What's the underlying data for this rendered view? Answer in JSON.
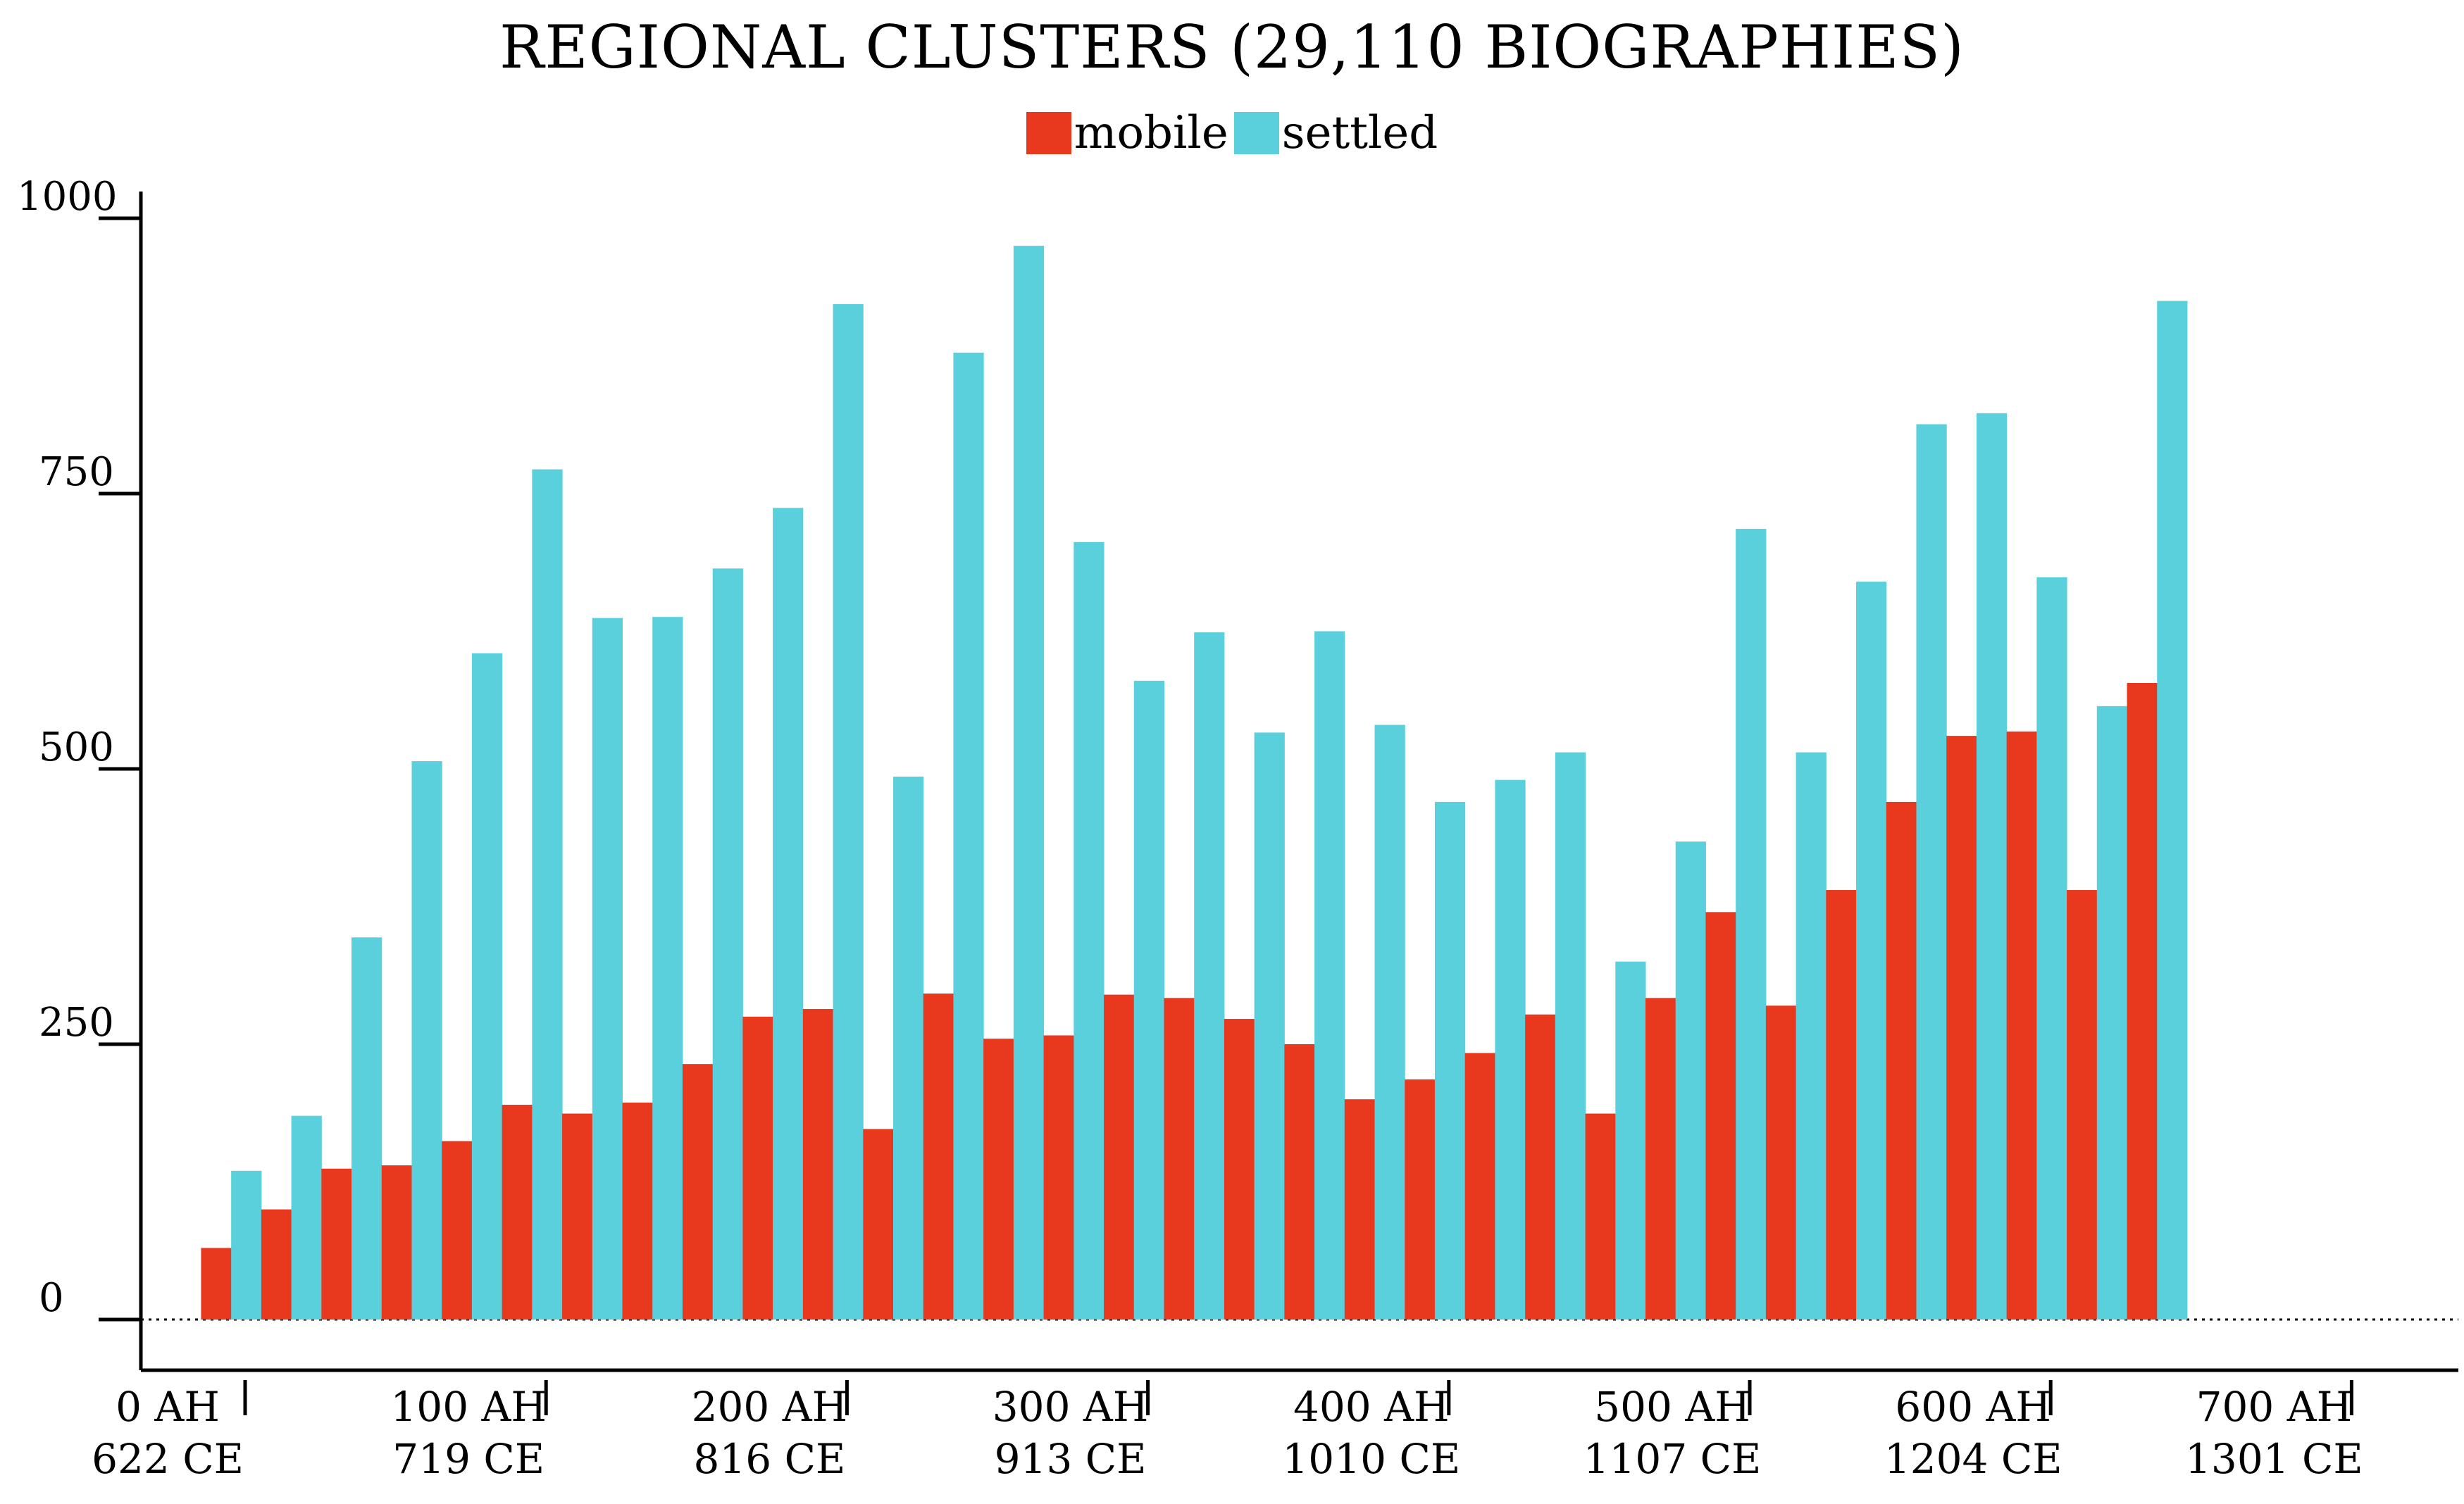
{
  "chart_data": {
    "type": "bar",
    "title": "REGIONAL CLUSTERS (29,110 BIOGRAPHIES)",
    "legend": {
      "position": "top-center"
    },
    "colors": {
      "mobile": "#e8391e",
      "settled": "#5ad0dc"
    },
    "y_ticks": [
      "0",
      "250",
      "500",
      "750",
      "1000"
    ],
    "ylim": [
      0,
      1000
    ],
    "x_ticks": [
      {
        "ah": "0 AH",
        "ce": "622 CE"
      },
      {
        "ah": "100 AH",
        "ce": "719 CE"
      },
      {
        "ah": "200 AH",
        "ce": "816 CE"
      },
      {
        "ah": "300 AH",
        "ce": "913 CE"
      },
      {
        "ah": "400 AH",
        "ce": "1010 CE"
      },
      {
        "ah": "500 AH",
        "ce": "1107 CE"
      },
      {
        "ah": "600 AH",
        "ce": "1204 CE"
      },
      {
        "ah": "700 AH",
        "ce": "1301 CE"
      }
    ],
    "xlim": [
      0,
      710
    ],
    "bin_width_ah": 20,
    "bin_starts_ah": [
      20,
      40,
      60,
      80,
      100,
      120,
      140,
      160,
      180,
      200,
      220,
      240,
      260,
      280,
      300,
      320,
      340,
      360,
      380,
      400,
      420,
      440,
      460,
      480,
      500,
      520,
      540,
      560,
      580,
      600,
      620,
      640,
      660
    ],
    "series": [
      {
        "name": "mobile",
        "values": [
          65,
          100,
          137,
          140,
          162,
          195,
          187,
          197,
          232,
          275,
          282,
          173,
          296,
          255,
          258,
          295,
          292,
          273,
          250,
          200,
          218,
          242,
          277,
          187,
          292,
          370,
          285,
          390,
          470,
          530,
          534,
          390,
          578
        ]
      },
      {
        "name": "settled",
        "values": [
          135,
          185,
          347,
          507,
          605,
          772,
          637,
          638,
          682,
          737,
          922,
          493,
          878,
          975,
          706,
          580,
          624,
          533,
          625,
          540,
          470,
          490,
          515,
          325,
          434,
          718,
          515,
          670,
          813,
          823,
          674,
          557,
          925
        ]
      }
    ]
  }
}
